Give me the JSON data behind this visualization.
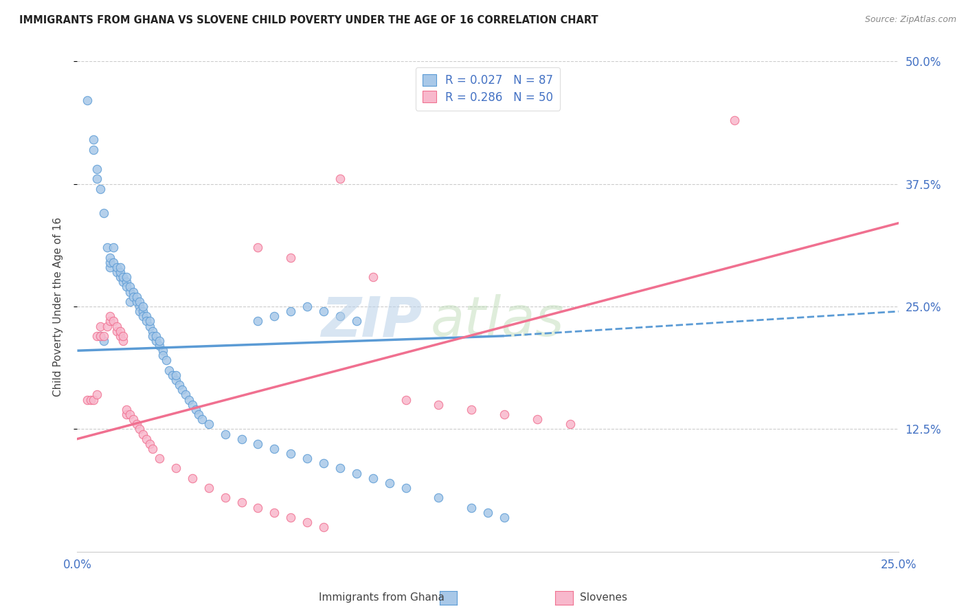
{
  "title": "IMMIGRANTS FROM GHANA VS SLOVENE CHILD POVERTY UNDER THE AGE OF 16 CORRELATION CHART",
  "source": "Source: ZipAtlas.com",
  "ylabel": "Child Poverty Under the Age of 16",
  "xlim": [
    0.0,
    0.25
  ],
  "ylim": [
    0.0,
    0.5
  ],
  "ytick_labels": [
    "12.5%",
    "25.0%",
    "37.5%",
    "50.0%"
  ],
  "ytick_positions": [
    0.125,
    0.25,
    0.375,
    0.5
  ],
  "xtick_positions": [
    0.0,
    0.25
  ],
  "legend_r1": "R = 0.027   N = 87",
  "legend_r2": "R = 0.286   N = 50",
  "ghana_color": "#5b9bd5",
  "slovene_color": "#f07090",
  "ghana_scatter_face": "#a8c8e8",
  "slovene_scatter_face": "#f8b8cc",
  "ghana_scatter": [
    [
      0.003,
      0.46
    ],
    [
      0.005,
      0.41
    ],
    [
      0.005,
      0.42
    ],
    [
      0.006,
      0.38
    ],
    [
      0.006,
      0.39
    ],
    [
      0.007,
      0.37
    ],
    [
      0.008,
      0.345
    ],
    [
      0.009,
      0.31
    ],
    [
      0.01,
      0.29
    ],
    [
      0.01,
      0.295
    ],
    [
      0.01,
      0.3
    ],
    [
      0.011,
      0.31
    ],
    [
      0.011,
      0.295
    ],
    [
      0.012,
      0.285
    ],
    [
      0.012,
      0.29
    ],
    [
      0.013,
      0.28
    ],
    [
      0.013,
      0.285
    ],
    [
      0.013,
      0.29
    ],
    [
      0.014,
      0.275
    ],
    [
      0.014,
      0.28
    ],
    [
      0.015,
      0.275
    ],
    [
      0.015,
      0.28
    ],
    [
      0.015,
      0.27
    ],
    [
      0.016,
      0.265
    ],
    [
      0.016,
      0.27
    ],
    [
      0.016,
      0.255
    ],
    [
      0.017,
      0.265
    ],
    [
      0.017,
      0.26
    ],
    [
      0.018,
      0.255
    ],
    [
      0.018,
      0.26
    ],
    [
      0.019,
      0.25
    ],
    [
      0.019,
      0.255
    ],
    [
      0.019,
      0.245
    ],
    [
      0.02,
      0.245
    ],
    [
      0.02,
      0.25
    ],
    [
      0.02,
      0.24
    ],
    [
      0.021,
      0.24
    ],
    [
      0.021,
      0.235
    ],
    [
      0.022,
      0.23
    ],
    [
      0.022,
      0.235
    ],
    [
      0.023,
      0.225
    ],
    [
      0.023,
      0.22
    ],
    [
      0.024,
      0.215
    ],
    [
      0.024,
      0.22
    ],
    [
      0.025,
      0.21
    ],
    [
      0.025,
      0.215
    ],
    [
      0.026,
      0.205
    ],
    [
      0.026,
      0.2
    ],
    [
      0.027,
      0.195
    ],
    [
      0.028,
      0.185
    ],
    [
      0.029,
      0.18
    ],
    [
      0.03,
      0.175
    ],
    [
      0.03,
      0.18
    ],
    [
      0.031,
      0.17
    ],
    [
      0.032,
      0.165
    ],
    [
      0.033,
      0.16
    ],
    [
      0.034,
      0.155
    ],
    [
      0.035,
      0.15
    ],
    [
      0.036,
      0.145
    ],
    [
      0.037,
      0.14
    ],
    [
      0.038,
      0.135
    ],
    [
      0.04,
      0.13
    ],
    [
      0.045,
      0.12
    ],
    [
      0.05,
      0.115
    ],
    [
      0.055,
      0.11
    ],
    [
      0.06,
      0.105
    ],
    [
      0.065,
      0.1
    ],
    [
      0.07,
      0.095
    ],
    [
      0.075,
      0.09
    ],
    [
      0.08,
      0.085
    ],
    [
      0.085,
      0.08
    ],
    [
      0.09,
      0.075
    ],
    [
      0.095,
      0.07
    ],
    [
      0.1,
      0.065
    ],
    [
      0.11,
      0.055
    ],
    [
      0.12,
      0.045
    ],
    [
      0.125,
      0.04
    ],
    [
      0.13,
      0.035
    ],
    [
      0.055,
      0.235
    ],
    [
      0.06,
      0.24
    ],
    [
      0.065,
      0.245
    ],
    [
      0.07,
      0.25
    ],
    [
      0.075,
      0.245
    ],
    [
      0.08,
      0.24
    ],
    [
      0.085,
      0.235
    ],
    [
      0.007,
      0.22
    ],
    [
      0.008,
      0.215
    ]
  ],
  "slovene_scatter": [
    [
      0.003,
      0.155
    ],
    [
      0.004,
      0.155
    ],
    [
      0.005,
      0.155
    ],
    [
      0.006,
      0.16
    ],
    [
      0.006,
      0.22
    ],
    [
      0.007,
      0.22
    ],
    [
      0.007,
      0.23
    ],
    [
      0.008,
      0.22
    ],
    [
      0.009,
      0.23
    ],
    [
      0.01,
      0.235
    ],
    [
      0.01,
      0.24
    ],
    [
      0.011,
      0.235
    ],
    [
      0.012,
      0.225
    ],
    [
      0.012,
      0.23
    ],
    [
      0.013,
      0.22
    ],
    [
      0.013,
      0.225
    ],
    [
      0.014,
      0.215
    ],
    [
      0.014,
      0.22
    ],
    [
      0.015,
      0.14
    ],
    [
      0.015,
      0.145
    ],
    [
      0.016,
      0.14
    ],
    [
      0.017,
      0.135
    ],
    [
      0.018,
      0.13
    ],
    [
      0.019,
      0.125
    ],
    [
      0.02,
      0.12
    ],
    [
      0.021,
      0.115
    ],
    [
      0.022,
      0.11
    ],
    [
      0.023,
      0.105
    ],
    [
      0.025,
      0.095
    ],
    [
      0.03,
      0.085
    ],
    [
      0.035,
      0.075
    ],
    [
      0.04,
      0.065
    ],
    [
      0.045,
      0.055
    ],
    [
      0.05,
      0.05
    ],
    [
      0.055,
      0.045
    ],
    [
      0.06,
      0.04
    ],
    [
      0.065,
      0.035
    ],
    [
      0.07,
      0.03
    ],
    [
      0.075,
      0.025
    ],
    [
      0.08,
      0.38
    ],
    [
      0.09,
      0.28
    ],
    [
      0.1,
      0.155
    ],
    [
      0.11,
      0.15
    ],
    [
      0.12,
      0.145
    ],
    [
      0.13,
      0.14
    ],
    [
      0.14,
      0.135
    ],
    [
      0.15,
      0.13
    ],
    [
      0.2,
      0.44
    ],
    [
      0.055,
      0.31
    ],
    [
      0.065,
      0.3
    ]
  ],
  "ghana_line": {
    "x": [
      0.0,
      0.13
    ],
    "y": [
      0.205,
      0.22
    ]
  },
  "ghana_dash": {
    "x": [
      0.13,
      0.25
    ],
    "y": [
      0.22,
      0.245
    ]
  },
  "slovene_line": {
    "x": [
      0.0,
      0.25
    ],
    "y": [
      0.115,
      0.335
    ]
  },
  "grid_color": "#cccccc",
  "watermark_zip_color": "#b0c8e0",
  "watermark_atlas_color": "#c8d8c8"
}
